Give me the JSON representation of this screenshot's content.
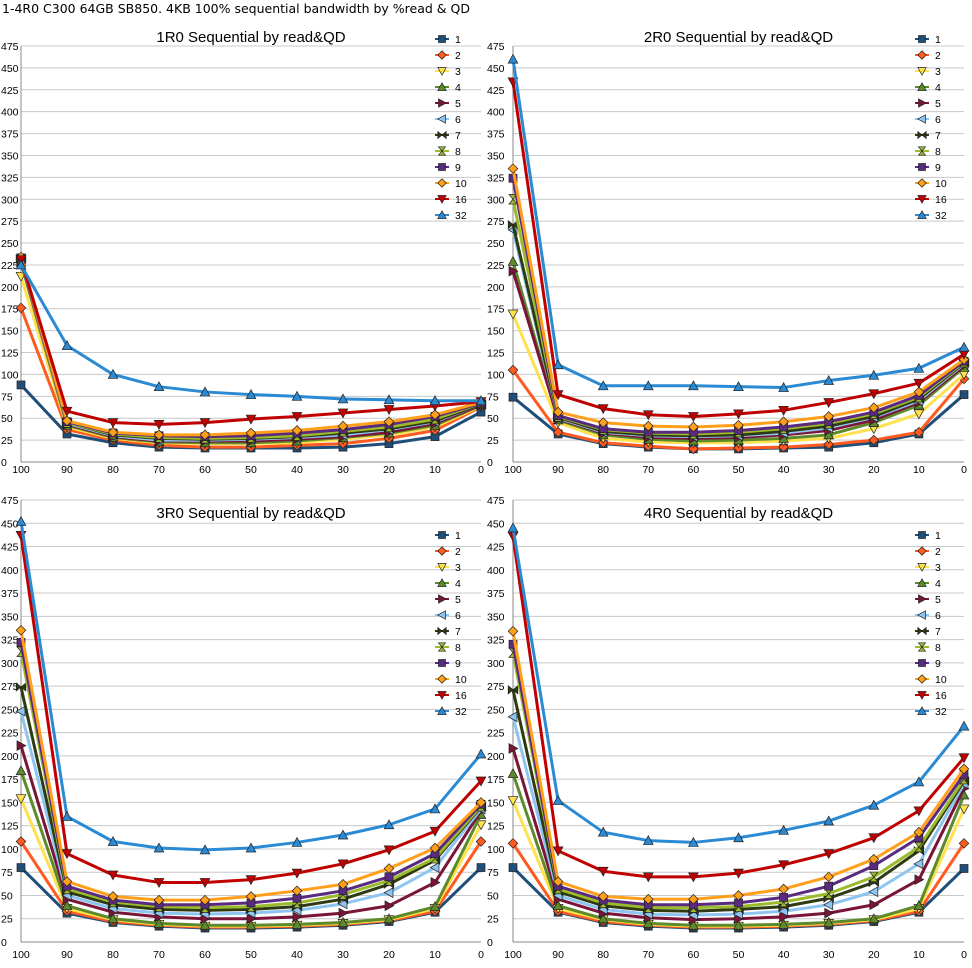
{
  "page": {
    "title": "1-4R0 C300 64GB SB850. 4KB 100% sequential bandwidth by %read & QD"
  },
  "legend_labels": [
    "1",
    "2",
    "3",
    "4",
    "5",
    "6",
    "7",
    "8",
    "9",
    "10",
    "16",
    "32"
  ],
  "series_colors": [
    "#1f4e79",
    "#ff5a1f",
    "#ffe14d",
    "#5d8a2a",
    "#7a1438",
    "#8ec5f0",
    "#2e3a12",
    "#9bbb2a",
    "#5a2a80",
    "#ff9f1a",
    "#c00000",
    "#2a8ad4"
  ],
  "series_markers": [
    "square",
    "diamond",
    "triangle-down",
    "triangle-up",
    "tri-right",
    "tri-left",
    "bowtie",
    "hourglass",
    "square",
    "diamond",
    "triangle-down",
    "triangle-up"
  ],
  "chart_data": [
    {
      "type": "line",
      "title": "1R0 Sequential by read&QD",
      "x": [
        100,
        90,
        80,
        70,
        60,
        50,
        40,
        30,
        20,
        10,
        0
      ],
      "yticks": [
        0,
        25,
        50,
        75,
        100,
        125,
        150,
        175,
        200,
        225,
        250,
        275,
        300,
        325,
        350,
        375,
        400,
        425,
        450,
        475
      ],
      "ylim": [
        0,
        475
      ],
      "series": [
        {
          "name": "1",
          "values": [
            88,
            32,
            22,
            17,
            16,
            16,
            16,
            17,
            21,
            29,
            57
          ]
        },
        {
          "name": "2",
          "values": [
            176,
            37,
            25,
            19,
            17,
            17,
            19,
            21,
            27,
            36,
            63
          ]
        },
        {
          "name": "3",
          "values": [
            212,
            40,
            27,
            22,
            21,
            21,
            22,
            26,
            31,
            40,
            64
          ]
        },
        {
          "name": "4",
          "values": [
            228,
            42,
            28,
            23,
            22,
            22,
            24,
            28,
            33,
            42,
            65
          ]
        },
        {
          "name": "5",
          "values": [
            230,
            43,
            29,
            24,
            24,
            24,
            26,
            29,
            34,
            44,
            65
          ]
        },
        {
          "name": "6",
          "values": [
            231,
            44,
            30,
            25,
            25,
            26,
            28,
            31,
            37,
            46,
            66
          ]
        },
        {
          "name": "7",
          "values": [
            232,
            45,
            31,
            27,
            26,
            27,
            29,
            33,
            38,
            47,
            66
          ]
        },
        {
          "name": "8",
          "values": [
            232,
            45,
            32,
            28,
            27,
            28,
            30,
            35,
            40,
            49,
            67
          ]
        },
        {
          "name": "9",
          "values": [
            233,
            46,
            33,
            30,
            29,
            30,
            33,
            37,
            43,
            52,
            67
          ]
        },
        {
          "name": "10",
          "values": [
            234,
            47,
            34,
            31,
            31,
            33,
            36,
            41,
            46,
            54,
            68
          ]
        },
        {
          "name": "16",
          "values": [
            231,
            58,
            45,
            43,
            45,
            49,
            52,
            56,
            60,
            64,
            69
          ]
        },
        {
          "name": "32",
          "values": [
            225,
            133,
            100,
            86,
            80,
            77,
            75,
            72,
            71,
            70,
            70
          ]
        }
      ]
    },
    {
      "type": "line",
      "title": "2R0 Sequential by read&QD",
      "x": [
        100,
        90,
        80,
        70,
        60,
        50,
        40,
        30,
        20,
        10,
        0
      ],
      "yticks": [
        0,
        25,
        50,
        75,
        100,
        125,
        150,
        175,
        200,
        225,
        250,
        275,
        300,
        325,
        350,
        375,
        400,
        425,
        450,
        475
      ],
      "ylim": [
        0,
        475
      ],
      "series": [
        {
          "name": "1",
          "values": [
            74,
            32,
            21,
            17,
            15,
            15,
            16,
            17,
            22,
            32,
            77
          ]
        },
        {
          "name": "2",
          "values": [
            105,
            34,
            22,
            18,
            15,
            16,
            17,
            20,
            25,
            34,
            95
          ]
        },
        {
          "name": "3",
          "values": [
            169,
            45,
            27,
            23,
            22,
            22,
            24,
            27,
            38,
            55,
            100
          ]
        },
        {
          "name": "4",
          "values": [
            229,
            48,
            31,
            26,
            24,
            25,
            27,
            31,
            45,
            65,
            108
          ]
        },
        {
          "name": "5",
          "values": [
            218,
            49,
            33,
            28,
            27,
            28,
            31,
            36,
            48,
            68,
            110
          ]
        },
        {
          "name": "6",
          "values": [
            265,
            50,
            34,
            30,
            29,
            30,
            33,
            39,
            51,
            70,
            112
          ]
        },
        {
          "name": "7",
          "values": [
            271,
            51,
            35,
            31,
            30,
            31,
            35,
            41,
            52,
            72,
            113
          ]
        },
        {
          "name": "8",
          "values": [
            300,
            52,
            37,
            33,
            32,
            34,
            38,
            44,
            55,
            74,
            114
          ]
        },
        {
          "name": "9",
          "values": [
            324,
            53,
            38,
            34,
            34,
            36,
            40,
            46,
            57,
            76,
            115
          ]
        },
        {
          "name": "10",
          "values": [
            335,
            57,
            45,
            41,
            40,
            42,
            46,
            52,
            62,
            80,
            117
          ]
        },
        {
          "name": "16",
          "values": [
            434,
            77,
            61,
            54,
            52,
            55,
            59,
            68,
            78,
            90,
            123
          ]
        },
        {
          "name": "32",
          "values": [
            460,
            111,
            87,
            87,
            87,
            86,
            85,
            93,
            99,
            107,
            131
          ]
        }
      ]
    },
    {
      "type": "line",
      "title": "3R0 Sequential by read&QD",
      "x": [
        100,
        90,
        80,
        70,
        60,
        50,
        40,
        30,
        20,
        10,
        0
      ],
      "yticks": [
        0,
        25,
        50,
        75,
        100,
        125,
        150,
        175,
        200,
        225,
        250,
        275,
        300,
        325,
        350,
        375,
        400,
        425,
        450,
        475
      ],
      "ylim": [
        0,
        475
      ],
      "series": [
        {
          "name": "1",
          "values": [
            80,
            31,
            21,
            17,
            15,
            15,
            16,
            18,
            22,
            32,
            80
          ]
        },
        {
          "name": "2",
          "values": [
            108,
            33,
            22,
            18,
            16,
            16,
            17,
            19,
            23,
            33,
            108
          ]
        },
        {
          "name": "3",
          "values": [
            154,
            36,
            24,
            19,
            17,
            17,
            18,
            20,
            24,
            36,
            126
          ]
        },
        {
          "name": "4",
          "values": [
            184,
            39,
            25,
            20,
            18,
            18,
            19,
            21,
            25,
            38,
            137
          ]
        },
        {
          "name": "5",
          "values": [
            211,
            46,
            32,
            27,
            25,
            25,
            27,
            31,
            39,
            64,
            141
          ]
        },
        {
          "name": "6",
          "values": [
            248,
            50,
            36,
            31,
            30,
            31,
            34,
            41,
            53,
            80,
            143
          ]
        },
        {
          "name": "7",
          "values": [
            274,
            54,
            40,
            35,
            34,
            35,
            38,
            46,
            62,
            88,
            145
          ]
        },
        {
          "name": "8",
          "values": [
            312,
            57,
            43,
            38,
            37,
            38,
            42,
            51,
            66,
            90,
            146
          ]
        },
        {
          "name": "9",
          "values": [
            322,
            60,
            45,
            40,
            40,
            42,
            47,
            55,
            70,
            95,
            148
          ]
        },
        {
          "name": "10",
          "values": [
            335,
            65,
            49,
            45,
            45,
            49,
            55,
            62,
            79,
            101,
            150
          ]
        },
        {
          "name": "16",
          "values": [
            437,
            95,
            72,
            64,
            64,
            67,
            74,
            84,
            99,
            119,
            173
          ]
        },
        {
          "name": "32",
          "values": [
            452,
            135,
            108,
            101,
            99,
            101,
            107,
            115,
            126,
            143,
            202
          ]
        }
      ]
    },
    {
      "type": "line",
      "title": "4R0 Sequential by read&QD",
      "x": [
        100,
        90,
        80,
        70,
        60,
        50,
        40,
        30,
        20,
        10,
        0
      ],
      "yticks": [
        0,
        25,
        50,
        75,
        100,
        125,
        150,
        175,
        200,
        225,
        250,
        275,
        300,
        325,
        350,
        375,
        400,
        425,
        450,
        475
      ],
      "ylim": [
        0,
        475
      ],
      "series": [
        {
          "name": "1",
          "values": [
            80,
            32,
            21,
            17,
            15,
            15,
            16,
            18,
            22,
            32,
            79
          ]
        },
        {
          "name": "2",
          "values": [
            106,
            33,
            22,
            18,
            16,
            16,
            17,
            19,
            23,
            33,
            106
          ]
        },
        {
          "name": "3",
          "values": [
            152,
            36,
            24,
            19,
            17,
            17,
            18,
            20,
            24,
            36,
            143
          ]
        },
        {
          "name": "4",
          "values": [
            181,
            39,
            25,
            20,
            18,
            18,
            19,
            21,
            25,
            39,
            158
          ]
        },
        {
          "name": "5",
          "values": [
            208,
            46,
            31,
            26,
            24,
            25,
            27,
            31,
            40,
            67,
            165
          ]
        },
        {
          "name": "6",
          "values": [
            242,
            50,
            35,
            30,
            29,
            30,
            33,
            40,
            54,
            84,
            170
          ]
        },
        {
          "name": "7",
          "values": [
            271,
            54,
            39,
            34,
            33,
            35,
            38,
            47,
            64,
            98,
            173
          ]
        },
        {
          "name": "8",
          "values": [
            311,
            57,
            42,
            37,
            37,
            38,
            43,
            52,
            70,
            102,
            175
          ]
        },
        {
          "name": "9",
          "values": [
            320,
            60,
            45,
            40,
            40,
            42,
            48,
            60,
            82,
            112,
            180
          ]
        },
        {
          "name": "10",
          "values": [
            334,
            65,
            49,
            46,
            46,
            50,
            57,
            70,
            89,
            118,
            186
          ]
        },
        {
          "name": "16",
          "values": [
            436,
            98,
            76,
            70,
            70,
            74,
            83,
            95,
            112,
            141,
            198
          ]
        },
        {
          "name": "32",
          "values": [
            445,
            152,
            118,
            109,
            107,
            112,
            120,
            130,
            147,
            172,
            232
          ]
        }
      ]
    }
  ]
}
